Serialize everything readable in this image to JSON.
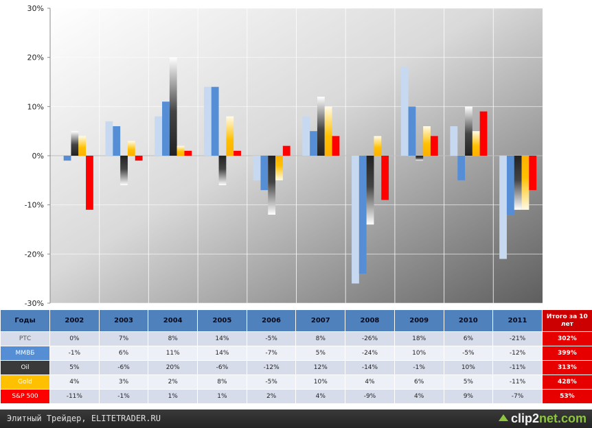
{
  "chart_data": {
    "type": "bar",
    "categories": [
      "2002",
      "2003",
      "2004",
      "2005",
      "2006",
      "2007",
      "2008",
      "2009",
      "2010",
      "2011"
    ],
    "series": [
      {
        "name": "РТС",
        "color": "#c6d9f1",
        "values": [
          0,
          7,
          8,
          14,
          -5,
          8,
          -26,
          18,
          6,
          -21
        ]
      },
      {
        "name": "ММВБ",
        "color": "#558ed5",
        "values": [
          -1,
          6,
          11,
          14,
          -7,
          5,
          -24,
          10,
          -5,
          -12
        ]
      },
      {
        "name": "Oil",
        "color": "#3a3a3a",
        "values": [
          5,
          -6,
          20,
          -6,
          -12,
          12,
          -14,
          -1,
          10,
          -11
        ]
      },
      {
        "name": "Gold",
        "color": "#ffc000",
        "values": [
          4,
          3,
          2,
          8,
          -5,
          10,
          4,
          6,
          5,
          -11
        ]
      },
      {
        "name": "S&P 500",
        "color": "#ff0000",
        "values": [
          -11,
          -1,
          1,
          1,
          2,
          4,
          -9,
          4,
          9,
          -7
        ]
      }
    ],
    "ylim": [
      -30,
      30
    ],
    "yticks": [
      "-30%",
      "-20%",
      "-10%",
      "0%",
      "10%",
      "20%",
      "30%"
    ],
    "grid": true
  },
  "table": {
    "header_label": "Годы",
    "years": [
      "2002",
      "2003",
      "2004",
      "2005",
      "2006",
      "2007",
      "2008",
      "2009",
      "2010",
      "2011"
    ],
    "total_header": "Итого за 10 лет",
    "rows": [
      {
        "label": "РТС",
        "label_color": "#d7dcea",
        "label_text_color": "#555555",
        "cells": [
          "0%",
          "7%",
          "8%",
          "14%",
          "-5%",
          "8%",
          "-26%",
          "18%",
          "6%",
          "-21%"
        ],
        "total": "302%"
      },
      {
        "label": "ММВБ",
        "label_color": "#558ed5",
        "label_text_color": "#ffffff",
        "cells": [
          "-1%",
          "6%",
          "11%",
          "14%",
          "-7%",
          "5%",
          "-24%",
          "10%",
          "-5%",
          "-12%"
        ],
        "total": "399%"
      },
      {
        "label": "Oil",
        "label_color": "#3a3a3a",
        "label_text_color": "#ffffff",
        "cells": [
          "5%",
          "-6%",
          "20%",
          "-6%",
          "-12%",
          "12%",
          "-14%",
          "-1%",
          "10%",
          "-11%"
        ],
        "total": "313%"
      },
      {
        "label": "Gold",
        "label_color": "#ffc000",
        "label_text_color": "#ffffff",
        "cells": [
          "4%",
          "3%",
          "2%",
          "8%",
          "-5%",
          "10%",
          "4%",
          "6%",
          "5%",
          "-11%"
        ],
        "total": "428%"
      },
      {
        "label": "S&P 500",
        "label_color": "#ff0000",
        "label_text_color": "#ffffff",
        "cells": [
          "-11%",
          "-1%",
          "1%",
          "1%",
          "2%",
          "4%",
          "-9%",
          "4%",
          "9%",
          "-7%"
        ],
        "total": "53%"
      }
    ]
  },
  "footer": {
    "caption": "Элитный Трейдер, ELITETRADER.RU",
    "logo_part1": "clip2",
    "logo_part2": "net.com"
  }
}
